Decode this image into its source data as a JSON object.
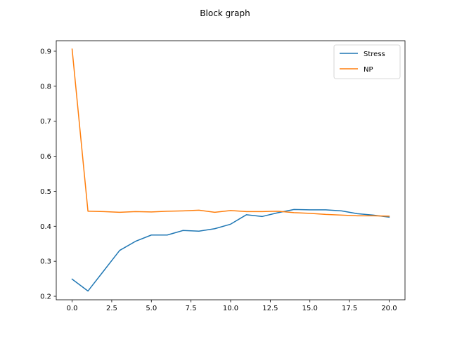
{
  "chart_data": {
    "type": "line",
    "title": "Block graph",
    "xlabel": "",
    "ylabel": "",
    "xlim": [
      -1.0,
      21.0
    ],
    "ylim": [
      0.19,
      0.93
    ],
    "xticks": [
      0.0,
      2.5,
      5.0,
      7.5,
      10.0,
      12.5,
      15.0,
      17.5,
      20.0
    ],
    "xtick_labels": [
      "0.0",
      "2.5",
      "5.0",
      "7.5",
      "10.0",
      "12.5",
      "15.0",
      "17.5",
      "20.0"
    ],
    "yticks": [
      0.2,
      0.3,
      0.4,
      0.5,
      0.6,
      0.7,
      0.8,
      0.9
    ],
    "ytick_labels": [
      "0.2",
      "0.3",
      "0.4",
      "0.5",
      "0.6",
      "0.7",
      "0.8",
      "0.9"
    ],
    "grid": false,
    "legend_position": "top-right",
    "x": [
      0,
      1,
      2,
      3,
      4,
      5,
      6,
      7,
      8,
      9,
      10,
      11,
      12,
      13,
      14,
      15,
      16,
      17,
      18,
      19,
      20
    ],
    "series": [
      {
        "name": "Stress",
        "color": "#1f77b4",
        "values": [
          0.249,
          0.215,
          0.273,
          0.331,
          0.357,
          0.375,
          0.375,
          0.388,
          0.386,
          0.393,
          0.406,
          0.433,
          0.428,
          0.439,
          0.448,
          0.447,
          0.447,
          0.444,
          0.436,
          0.432,
          0.426
        ]
      },
      {
        "name": "NP",
        "color": "#ff7f0e",
        "values": [
          0.906,
          0.443,
          0.442,
          0.44,
          0.442,
          0.441,
          0.443,
          0.444,
          0.446,
          0.44,
          0.445,
          0.442,
          0.442,
          0.443,
          0.439,
          0.437,
          0.434,
          0.432,
          0.43,
          0.43,
          0.429
        ]
      }
    ]
  }
}
